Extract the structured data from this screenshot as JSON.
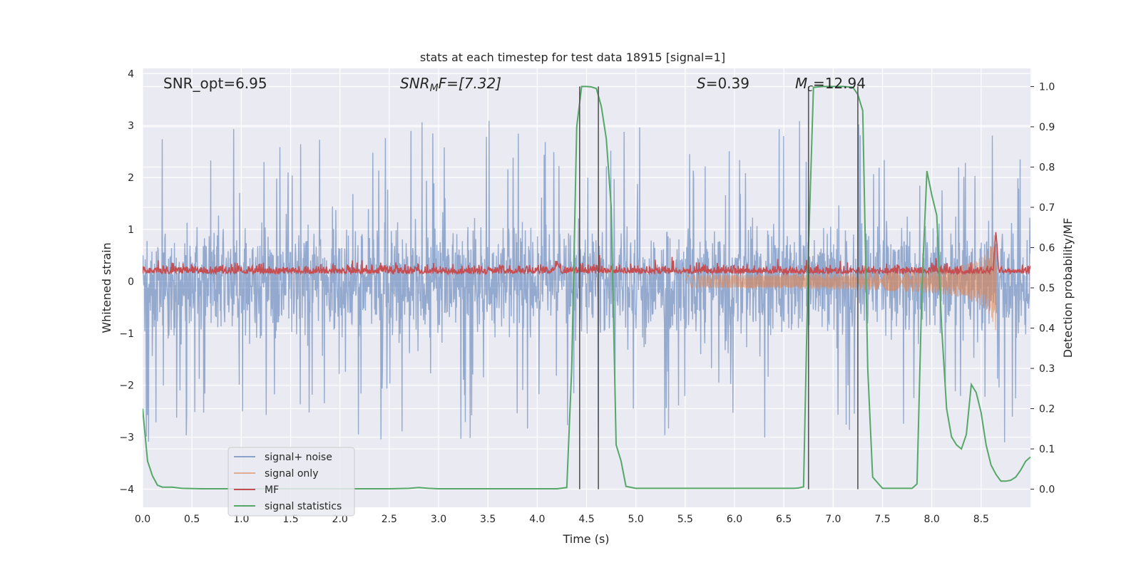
{
  "chart_data": {
    "type": "line",
    "title": "stats at each timestep for test data 18915 [signal=1]",
    "xlabel": "Time (s)",
    "ylabel": "Whitened strain",
    "y2label": "Detection probability/MF",
    "xlim": [
      0.0,
      9.0
    ],
    "ylim": [
      -4.35,
      4.1
    ],
    "y2lim": [
      -0.045,
      1.045
    ],
    "xticks": [
      "0.0",
      "0.5",
      "1.0",
      "1.5",
      "2.0",
      "2.5",
      "3.0",
      "3.5",
      "4.0",
      "4.5",
      "5.0",
      "5.5",
      "6.0",
      "6.5",
      "7.0",
      "7.5",
      "8.0",
      "8.5"
    ],
    "yticks": [
      "4",
      "3",
      "2",
      "1",
      "0",
      "−1",
      "−2",
      "−3",
      "−4"
    ],
    "y2ticks": [
      "1.0",
      "0.9",
      "0.8",
      "0.7",
      "0.6",
      "0.5",
      "0.4",
      "0.3",
      "0.2",
      "0.1",
      "0.0"
    ],
    "grid": true,
    "legend_placement": "lower-left",
    "annotations": {
      "snr_opt": "SNR_opt=6.95",
      "snr_mf_main": "SNR",
      "snr_mf_sub": "M",
      "snr_mf_rest": "F=[7.32]",
      "s_main": "S",
      "s_rest": "=0.39",
      "mc_main": "M",
      "mc_sub": "c",
      "mc_rest": "=12.94"
    },
    "colors": {
      "background": "#eaeaf2",
      "grid": "#ffffff",
      "noise": "#4c72b0",
      "signal": "#dd8452",
      "mf": "#c44e52",
      "stats": "#55a868",
      "vline": "#555555"
    },
    "series": [
      {
        "name": "signal+ noise",
        "kind": "noise",
        "x_range": [
          0.0,
          9.0
        ],
        "envelope_upper": 2.5,
        "envelope_lower": -2.2,
        "peak_max": 3.7,
        "peak_min": -4.0
      },
      {
        "name": "signal only",
        "kind": "chirp",
        "x_range": [
          5.5,
          8.65
        ],
        "peak_max": 1.35,
        "peak_min": -1.05
      },
      {
        "name": "MF",
        "kind": "mf",
        "x_range": [
          0.0,
          9.0
        ],
        "baseline": 0.15,
        "peak_max": 0.98,
        "peak_x": 8.65
      },
      {
        "name": "signal statistics",
        "kind": "stats",
        "axis": "y2",
        "x": [
          0.0,
          0.05,
          0.1,
          0.15,
          0.2,
          0.3,
          0.4,
          0.6,
          0.8,
          1.0,
          1.5,
          2.0,
          2.5,
          2.7,
          2.8,
          2.9,
          3.0,
          3.5,
          4.0,
          4.2,
          4.3,
          4.35,
          4.4,
          4.45,
          4.5,
          4.55,
          4.6,
          4.65,
          4.7,
          4.75,
          4.8,
          4.85,
          4.9,
          5.0,
          5.5,
          6.0,
          6.5,
          6.6,
          6.65,
          6.7,
          6.75,
          6.8,
          6.9,
          7.0,
          7.1,
          7.2,
          7.25,
          7.3,
          7.35,
          7.4,
          7.5,
          7.7,
          7.8,
          7.85,
          7.9,
          7.95,
          8.0,
          8.05,
          8.1,
          8.15,
          8.2,
          8.25,
          8.3,
          8.35,
          8.4,
          8.45,
          8.5,
          8.55,
          8.6,
          8.65,
          8.7,
          8.75,
          8.8,
          8.85,
          8.9,
          8.95,
          9.0
        ],
        "y": [
          0.2,
          0.07,
          0.033,
          0.01,
          0.005,
          0.005,
          0.002,
          0.001,
          0.001,
          0.001,
          0.001,
          0.001,
          0.001,
          0.002,
          0.004,
          0.002,
          0.001,
          0.001,
          0.001,
          0.001,
          0.004,
          0.3,
          0.9,
          1.0,
          1.0,
          0.999,
          0.995,
          0.95,
          0.87,
          0.7,
          0.11,
          0.07,
          0.007,
          0.002,
          0.002,
          0.002,
          0.002,
          0.002,
          0.003,
          0.006,
          0.6,
          0.998,
          1.0,
          1.0,
          1.0,
          0.998,
          0.98,
          0.94,
          0.3,
          0.03,
          0.002,
          0.002,
          0.002,
          0.013,
          0.5,
          0.79,
          0.73,
          0.68,
          0.4,
          0.2,
          0.13,
          0.11,
          0.1,
          0.136,
          0.26,
          0.24,
          0.19,
          0.11,
          0.06,
          0.037,
          0.02,
          0.02,
          0.022,
          0.03,
          0.047,
          0.069,
          0.08
        ]
      }
    ],
    "vlines": [
      4.43,
      4.62,
      6.75,
      7.25
    ]
  }
}
